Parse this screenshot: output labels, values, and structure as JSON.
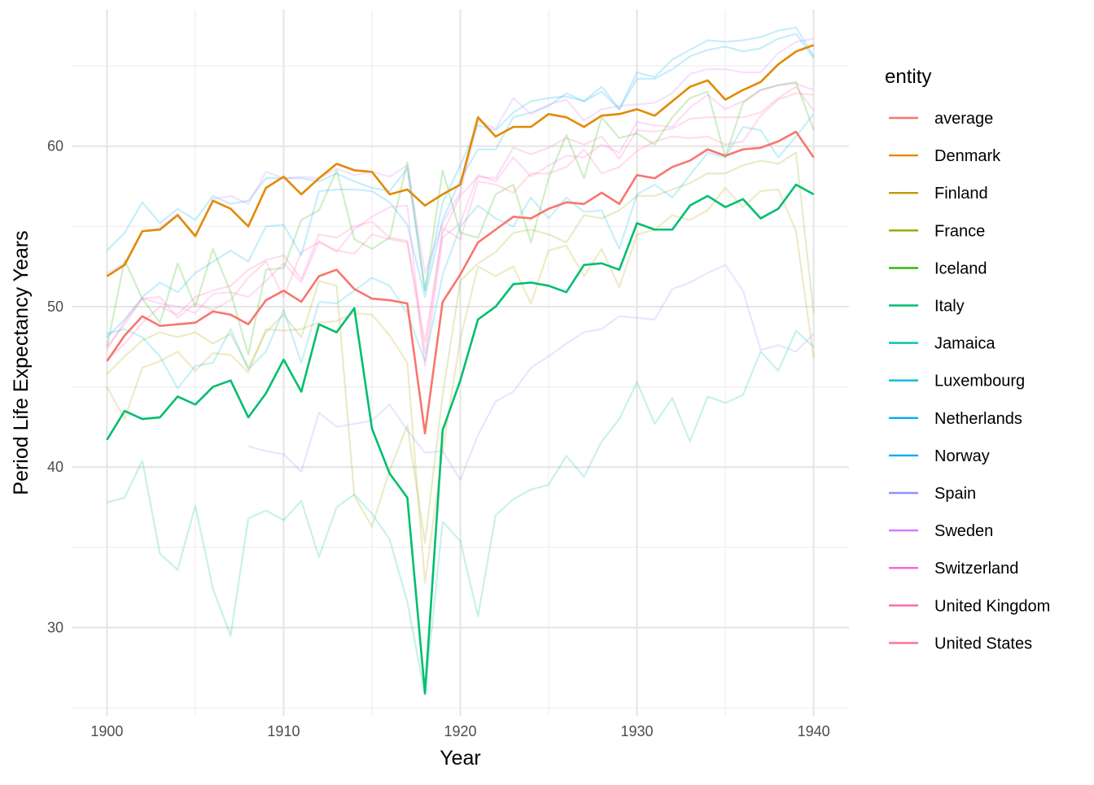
{
  "chart_data": {
    "type": "line",
    "xlabel": "Year",
    "ylabel": "Period Life Expectancy Years",
    "xlim": [
      1898,
      1942
    ],
    "ylim": [
      24.5,
      68.5
    ],
    "x_ticks": [
      1900,
      1910,
      1920,
      1930,
      1940
    ],
    "y_ticks": [
      30,
      40,
      50,
      60
    ],
    "grid": true,
    "legend": {
      "title": "entity",
      "position": "right"
    },
    "x_start": 1900,
    "highlighted": [
      "average",
      "Denmark",
      "Italy"
    ],
    "series": [
      {
        "name": "average",
        "color": "#F8766D",
        "start": 1900,
        "values": [
          46.6,
          48.2,
          49.4,
          48.8,
          48.9,
          49.0,
          49.7,
          49.5,
          48.9,
          50.4,
          51.0,
          50.3,
          51.9,
          52.3,
          51.1,
          50.5,
          50.4,
          50.2,
          42.1,
          50.3,
          52.0,
          54.0,
          54.8,
          55.6,
          55.5,
          56.1,
          56.5,
          56.4,
          57.1,
          56.4,
          58.2,
          58.0,
          58.7,
          59.1,
          59.8,
          59.4,
          59.8,
          59.9,
          60.3,
          60.9,
          59.3
        ]
      },
      {
        "name": "Denmark",
        "color": "#E18A00",
        "start": 1900,
        "values": [
          51.9,
          52.6,
          54.7,
          54.8,
          55.7,
          54.4,
          56.6,
          56.1,
          55.0,
          57.4,
          58.1,
          57.0,
          58.0,
          58.9,
          58.5,
          58.4,
          57.0,
          57.3,
          56.3,
          57.0,
          57.6,
          61.8,
          60.6,
          61.2,
          61.2,
          62.0,
          61.8,
          61.2,
          61.9,
          62.0,
          62.3,
          61.9,
          62.8,
          63.7,
          64.1,
          62.9,
          63.5,
          64.0,
          65.1,
          65.9,
          66.3
        ]
      },
      {
        "name": "Finland",
        "color": "#BE9C00",
        "start": 1900,
        "values": [
          45.0,
          43.0,
          46.2,
          46.6,
          47.2,
          46.0,
          47.1,
          47.0,
          45.9,
          48.6,
          48.5,
          48.6,
          49.0,
          49.1,
          49.6,
          49.5,
          48.2,
          46.5,
          32.8,
          41.0,
          48.0,
          52.5,
          51.9,
          52.5,
          50.2,
          53.5,
          53.8,
          51.9,
          53.6,
          51.2,
          54.5,
          54.8,
          55.7,
          55.4,
          56.0,
          57.4,
          56.2,
          57.2,
          57.3,
          54.7,
          46.8
        ]
      },
      {
        "name": "France",
        "color": "#8CAB00",
        "start": 1900,
        "values": [
          45.8,
          46.9,
          47.9,
          48.4,
          48.1,
          48.4,
          47.7,
          48.3,
          46.2,
          48.4,
          49.5,
          48.1,
          51.6,
          51.3,
          38.2,
          36.3,
          39.8,
          42.6,
          35.3,
          44.5,
          51.6,
          52.7,
          53.4,
          54.6,
          54.8,
          54.5,
          54.0,
          55.7,
          55.5,
          56.0,
          56.9,
          56.9,
          57.3,
          57.7,
          58.3,
          58.3,
          58.8,
          59.1,
          58.9,
          59.6,
          49.6
        ]
      },
      {
        "name": "Iceland",
        "color": "#24B700",
        "start": 1900,
        "values": [
          47.5,
          52.9,
          50.5,
          49.0,
          52.7,
          50.0,
          53.6,
          50.9,
          47.0,
          52.3,
          52.4,
          55.4,
          56.0,
          58.5,
          54.2,
          53.6,
          54.3,
          59.0,
          51.0,
          58.5,
          54.6,
          54.3,
          57.0,
          57.6,
          54.0,
          58.0,
          60.7,
          58.0,
          61.8,
          60.5,
          60.8,
          60.1,
          61.8,
          63.0,
          63.4,
          59.3,
          62.7,
          63.5,
          63.8,
          64.0,
          61.0
        ]
      },
      {
        "name": "Italy",
        "color": "#00BE70",
        "start": 1900,
        "values": [
          41.7,
          43.5,
          43.0,
          43.1,
          44.4,
          43.9,
          45.0,
          45.4,
          43.1,
          44.6,
          46.7,
          44.7,
          48.9,
          48.4,
          49.9,
          42.4,
          39.6,
          38.1,
          25.9,
          42.3,
          45.4,
          49.2,
          50.0,
          51.4,
          51.5,
          51.3,
          50.9,
          52.6,
          52.7,
          52.3,
          55.2,
          54.8,
          54.8,
          56.3,
          56.9,
          56.2,
          56.7,
          55.5,
          56.1,
          57.6,
          57.0
        ]
      },
      {
        "name": "Jamaica",
        "color": "#00C1AB",
        "start": 1900,
        "values": [
          37.8,
          38.1,
          40.4,
          34.6,
          33.6,
          37.6,
          32.4,
          29.5,
          36.8,
          37.3,
          36.7,
          37.9,
          34.4,
          37.5,
          38.3,
          37.1,
          35.5,
          31.6,
          25.8,
          36.6,
          35.4,
          30.7,
          37.0,
          38.0,
          38.6,
          38.9,
          40.7,
          39.4,
          41.6,
          43.0,
          45.3,
          42.7,
          44.3,
          41.6,
          44.4,
          44.0,
          44.5,
          47.2,
          46.0,
          48.5,
          47.5
        ]
      },
      {
        "name": "Luxembourg",
        "color": "#00BBDA",
        "start": 1900,
        "values": [
          48.3,
          48.6,
          48.1,
          46.9,
          44.9,
          46.3,
          46.5,
          48.6,
          46.1,
          47.2,
          49.8,
          46.5,
          50.3,
          50.2,
          51.0,
          51.8,
          51.3,
          49.6,
          46.6,
          52.0,
          55.0,
          56.3,
          55.5,
          55.0,
          56.8,
          55.5,
          56.8,
          55.9,
          56.0,
          53.6,
          57.0,
          57.6,
          56.8,
          58.2,
          59.6,
          59.3,
          61.2,
          61.0,
          59.3,
          60.6,
          62.0
        ]
      },
      {
        "name": "Netherlands",
        "color": "#00ACFC",
        "start": 1900,
        "values": [
          48.1,
          49.2,
          50.6,
          51.5,
          50.9,
          52.1,
          52.8,
          53.5,
          52.8,
          55.0,
          55.1,
          53.2,
          57.2,
          57.3,
          57.3,
          57.2,
          56.5,
          55.1,
          50.6,
          55.4,
          57.9,
          59.8,
          59.8,
          61.8,
          62.1,
          62.5,
          63.3,
          62.8,
          63.7,
          62.3,
          64.6,
          64.3,
          65.4,
          66.0,
          66.6,
          66.5,
          66.6,
          66.8,
          67.2,
          67.4,
          65.6
        ]
      },
      {
        "name": "Norway",
        "color": "#00AEEF",
        "start": 1900,
        "values": [
          53.5,
          54.6,
          56.5,
          55.2,
          56.1,
          55.4,
          56.9,
          56.4,
          56.6,
          58.0,
          58.0,
          58.0,
          57.8,
          58.3,
          57.8,
          57.4,
          57.2,
          58.6,
          51.0,
          56.5,
          58.8,
          61.3,
          61.0,
          62.1,
          62.8,
          63.0,
          63.1,
          62.8,
          63.4,
          62.3,
          64.2,
          64.2,
          64.8,
          65.6,
          66.0,
          66.2,
          65.9,
          66.1,
          66.7,
          67.0,
          65.5
        ]
      },
      {
        "name": "Spain",
        "color": "#8B93FF",
        "start": 1908,
        "values": [
          41.3,
          41.0,
          40.8,
          39.7,
          43.4,
          42.5,
          42.7,
          42.9,
          43.9,
          42.3,
          40.9,
          41.0,
          39.2,
          42.0,
          44.1,
          44.7,
          46.2,
          46.9,
          47.7,
          48.4,
          48.6,
          49.4,
          49.3,
          49.2,
          51.1,
          51.5,
          52.1,
          52.6,
          51.0,
          47.3,
          47.6,
          47.2,
          48.3
        ]
      },
      {
        "name": "Sweden",
        "color": "#D575FE",
        "start": 1900,
        "values": [
          52.1,
          52.7,
          54.7,
          54.9,
          55.8,
          54.3,
          56.7,
          56.9,
          56.4,
          58.4,
          58.0,
          58.1,
          58.0,
          58.6,
          58.2,
          58.4,
          58.1,
          58.8,
          52.1,
          55.2,
          57.1,
          61.6,
          61.1,
          63.0,
          62.0,
          62.6,
          62.9,
          61.6,
          62.3,
          62.5,
          62.6,
          62.7,
          63.3,
          64.5,
          64.8,
          64.8,
          64.6,
          64.6,
          65.8,
          66.5,
          66.7
        ]
      },
      {
        "name": "Switzerland",
        "color": "#F962DD",
        "start": 1900,
        "values": [
          47.5,
          48.9,
          50.5,
          50.2,
          50.0,
          49.6,
          50.8,
          50.9,
          50.6,
          51.6,
          52.7,
          51.5,
          54.1,
          53.4,
          54.8,
          55.6,
          56.2,
          56.3,
          46.3,
          54.3,
          55.2,
          58.2,
          57.8,
          59.3,
          58.1,
          58.8,
          59.4,
          59.3,
          60.1,
          59.6,
          61.5,
          61.3,
          61.2,
          62.4,
          63.2,
          62.3,
          62.8,
          63.5,
          63.8,
          63.9,
          63.5
        ]
      },
      {
        "name": "United Kingdom",
        "color": "#FF65AC",
        "start": 1900,
        "values": [
          46.7,
          47.7,
          49.0,
          50.0,
          49.5,
          50.6,
          51.0,
          51.3,
          52.3,
          52.9,
          53.2,
          51.7,
          54.5,
          54.3,
          55.0,
          55.3,
          54.3,
          54.1,
          47.8,
          54.6,
          56.9,
          58.1,
          58.0,
          59.9,
          59.5,
          59.9,
          60.5,
          60.1,
          60.6,
          59.2,
          61.0,
          60.9,
          61.1,
          61.7,
          61.8,
          61.8,
          61.8,
          62.1,
          63.0,
          63.7,
          62.2
        ]
      },
      {
        "name": "United States",
        "color": "#FF6C91",
        "start": 1900,
        "values": [
          47.3,
          49.1,
          50.5,
          50.6,
          49.3,
          50.2,
          49.8,
          50.4,
          51.8,
          52.8,
          50.6,
          53.4,
          54.0,
          53.5,
          53.3,
          54.5,
          54.2,
          54.0,
          47.1,
          54.9,
          54.2,
          57.8,
          57.6,
          57.1,
          58.3,
          58.3,
          58.7,
          59.8,
          58.3,
          58.7,
          59.7,
          60.3,
          60.6,
          60.5,
          60.6,
          60.1,
          60.3,
          61.9,
          62.9,
          63.3,
          63.2
        ]
      }
    ]
  }
}
